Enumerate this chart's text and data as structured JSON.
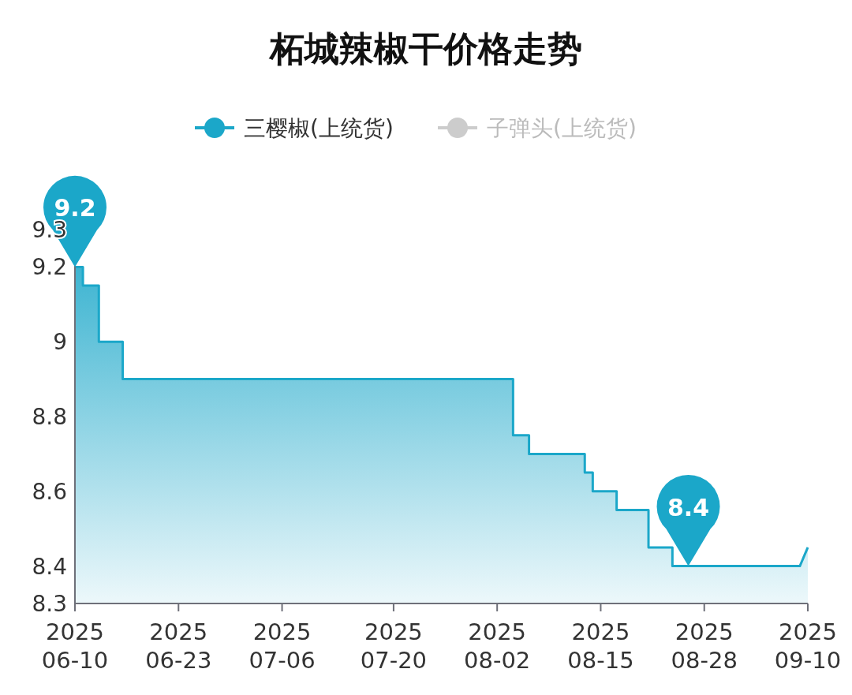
{
  "chart_data": {
    "type": "area",
    "title": "柘城辣椒干价格走势",
    "legend": "top",
    "x": [
      "2025-06-10",
      "2025-06-11",
      "2025-06-11",
      "2025-06-13",
      "2025-06-13",
      "2025-06-16",
      "2025-06-16",
      "2025-08-04",
      "2025-08-04",
      "2025-08-06",
      "2025-08-06",
      "2025-08-13",
      "2025-08-13",
      "2025-08-14",
      "2025-08-14",
      "2025-08-17",
      "2025-08-17",
      "2025-08-21",
      "2025-08-21",
      "2025-08-24",
      "2025-08-24",
      "2025-09-09",
      "2025-09-10"
    ],
    "series": [
      {
        "name": "三樱椒(上统货)",
        "color": "#1ba7c9",
        "values": [
          9.2,
          9.2,
          9.15,
          9.15,
          9.0,
          9.0,
          8.9,
          8.9,
          8.75,
          8.75,
          8.7,
          8.7,
          8.65,
          8.65,
          8.6,
          8.6,
          8.55,
          8.55,
          8.45,
          8.45,
          8.4,
          8.4,
          8.45
        ]
      },
      {
        "name": "子弹头(上统货)",
        "color": "#cccccc",
        "values": [
          null,
          null,
          null,
          null,
          null,
          null,
          null,
          null,
          null,
          null,
          null,
          null,
          null,
          null,
          null,
          null,
          null,
          null,
          null,
          null,
          null,
          null,
          null
        ]
      }
    ],
    "xlim": [
      "2025-06-10",
      "2025-09-10"
    ],
    "xticks": [
      {
        "value": "2025-06-10",
        "label": "2025\n06-10"
      },
      {
        "value": "2025-06-23",
        "label": "2025\n06-23"
      },
      {
        "value": "2025-07-06",
        "label": "2025\n07-06"
      },
      {
        "value": "2025-07-20",
        "label": "2025\n07-20"
      },
      {
        "value": "2025-08-02",
        "label": "2025\n08-02"
      },
      {
        "value": "2025-08-15",
        "label": "2025\n08-15"
      },
      {
        "value": "2025-08-28",
        "label": "2025\n08-28"
      },
      {
        "value": "2025-09-10",
        "label": "2025\n09-10"
      }
    ],
    "ylim": [
      8.3,
      9.3
    ],
    "yticks": [
      8.3,
      8.4,
      8.6,
      8.8,
      9,
      9.2,
      9.3
    ],
    "grid": false,
    "annotations": [
      {
        "text": "9.2",
        "x": "2025-06-10",
        "y": 9.2
      },
      {
        "text": "8.4",
        "x": "2025-08-26",
        "y": 8.4
      }
    ]
  }
}
